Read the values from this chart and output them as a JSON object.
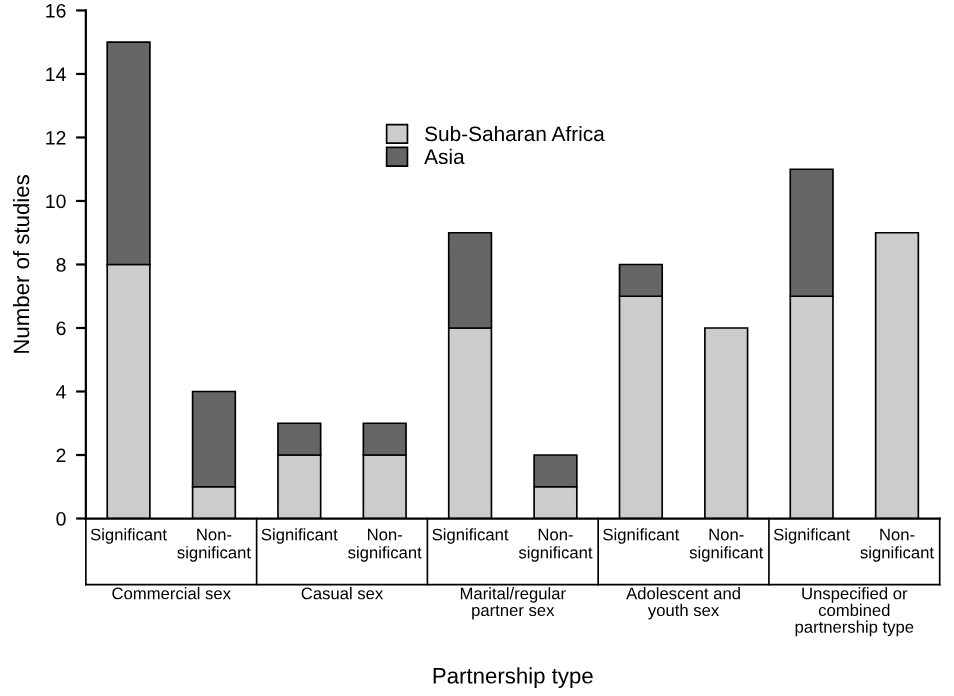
{
  "chart_data": {
    "type": "bar",
    "stacked": true,
    "xlabel": "Partnership type",
    "ylabel": "Number of studies",
    "categories": [
      "Significant",
      "Non-\nsignificant",
      "Significant",
      "Non-\nsignificant",
      "Significant",
      "Non-\nsignificant",
      "Significant",
      "Non-\nsignificant",
      "Significant",
      "Non-\nsignificant"
    ],
    "series": [
      {
        "name": "Sub-Saharan Africa",
        "color": "#cccccc",
        "values": [
          8,
          1,
          2,
          2,
          6,
          1,
          7,
          6,
          7,
          9
        ]
      },
      {
        "name": "Asia",
        "color": "#666666",
        "values": [
          7,
          3,
          1,
          1,
          3,
          1,
          1,
          null,
          4,
          null
        ]
      }
    ],
    "annotations": [
      "Commercial sex",
      "Casual sex",
      "Marital/regular\npartner sex",
      "Adolescent and\nyouth sex",
      "Unspecified or\ncombined\npartnership type"
    ],
    "ylim": [
      0,
      16
    ],
    "yticks": [
      0,
      2,
      4,
      6,
      8,
      10,
      12,
      14,
      16
    ],
    "grid": false,
    "legend": "top"
  }
}
